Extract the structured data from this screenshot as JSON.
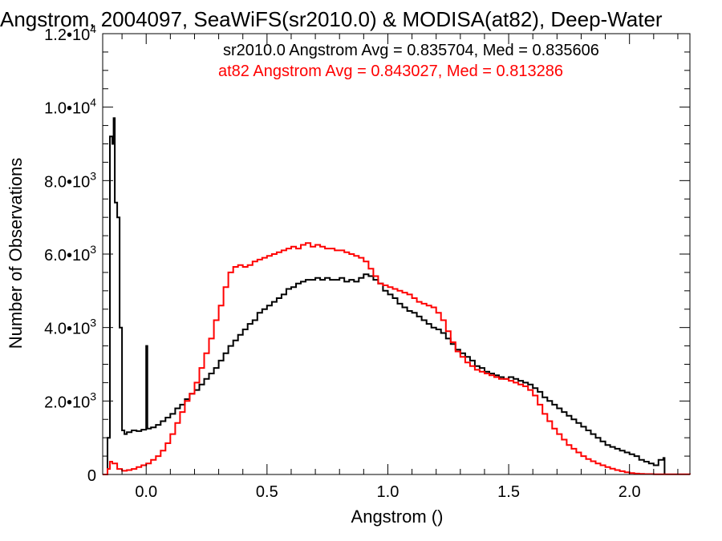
{
  "chart_data": {
    "type": "line",
    "title": "Angstrom, 2004097, SeaWiFS(sr2010.0) & MODISA(at82), Deep-Water",
    "xlabel": "Angstrom ()",
    "ylabel": "Number of Observations",
    "xlim": [
      -0.18,
      2.25
    ],
    "ylim": [
      0,
      12000
    ],
    "x_ticks": [
      {
        "value": 0.0,
        "label": "0.0"
      },
      {
        "value": 0.5,
        "label": "0.5"
      },
      {
        "value": 1.0,
        "label": "1.0"
      },
      {
        "value": 1.5,
        "label": "1.5"
      },
      {
        "value": 2.0,
        "label": "2.0"
      }
    ],
    "x_minor_step": 0.1,
    "y_ticks": [
      {
        "value": 0,
        "label": "0",
        "exp": ""
      },
      {
        "value": 2000,
        "label": "2.0•10",
        "exp": "3"
      },
      {
        "value": 4000,
        "label": "4.0•10",
        "exp": "3"
      },
      {
        "value": 6000,
        "label": "6.0•10",
        "exp": "3"
      },
      {
        "value": 8000,
        "label": "8.0•10",
        "exp": "3"
      },
      {
        "value": 10000,
        "label": "1.0•10",
        "exp": "4"
      },
      {
        "value": 12000,
        "label": "1.2•10",
        "exp": "4"
      }
    ],
    "y_minor_step": 500,
    "grid": false,
    "legend_position": "top-right",
    "annotations": [
      {
        "text": "sr2010.0 Angstrom Avg = 0.835704, Med = 0.835606",
        "color": "#000000"
      },
      {
        "text": "at82 Angstrom Avg = 0.843027, Med = 0.813286",
        "color": "#ff0000"
      }
    ],
    "series": [
      {
        "color": "#000000",
        "step": "histogram",
        "points": [
          [
            -0.18,
            0
          ],
          [
            -0.16,
            1000
          ],
          [
            -0.15,
            9200
          ],
          [
            -0.14,
            9000
          ],
          [
            -0.135,
            9700
          ],
          [
            -0.13,
            7400
          ],
          [
            -0.12,
            7000
          ],
          [
            -0.11,
            4000
          ],
          [
            -0.1,
            1200
          ],
          [
            -0.09,
            1100
          ],
          [
            -0.08,
            1150
          ],
          [
            -0.06,
            1200
          ],
          [
            -0.04,
            1180
          ],
          [
            -0.02,
            1220
          ],
          [
            0.0,
            3500
          ],
          [
            0.005,
            1250
          ],
          [
            0.02,
            1280
          ],
          [
            0.04,
            1350
          ],
          [
            0.06,
            1450
          ],
          [
            0.08,
            1550
          ],
          [
            0.1,
            1650
          ],
          [
            0.12,
            1800
          ],
          [
            0.14,
            1900
          ],
          [
            0.16,
            2050
          ],
          [
            0.18,
            2200
          ],
          [
            0.2,
            2300
          ],
          [
            0.22,
            2450
          ],
          [
            0.24,
            2600
          ],
          [
            0.26,
            2750
          ],
          [
            0.28,
            2900
          ],
          [
            0.3,
            3100
          ],
          [
            0.32,
            3300
          ],
          [
            0.34,
            3500
          ],
          [
            0.36,
            3650
          ],
          [
            0.38,
            3800
          ],
          [
            0.4,
            3950
          ],
          [
            0.42,
            4100
          ],
          [
            0.44,
            4200
          ],
          [
            0.46,
            4400
          ],
          [
            0.48,
            4500
          ],
          [
            0.5,
            4600
          ],
          [
            0.52,
            4700
          ],
          [
            0.54,
            4800
          ],
          [
            0.56,
            4900
          ],
          [
            0.58,
            5050
          ],
          [
            0.6,
            5100
          ],
          [
            0.62,
            5200
          ],
          [
            0.64,
            5250
          ],
          [
            0.66,
            5300
          ],
          [
            0.68,
            5300
          ],
          [
            0.7,
            5350
          ],
          [
            0.72,
            5300
          ],
          [
            0.74,
            5350
          ],
          [
            0.76,
            5300
          ],
          [
            0.78,
            5300
          ],
          [
            0.8,
            5350
          ],
          [
            0.82,
            5250
          ],
          [
            0.84,
            5300
          ],
          [
            0.86,
            5250
          ],
          [
            0.88,
            5350
          ],
          [
            0.9,
            5450
          ],
          [
            0.92,
            5400
          ],
          [
            0.94,
            5300
          ],
          [
            0.96,
            5200
          ],
          [
            0.98,
            5000
          ],
          [
            1.0,
            4900
          ],
          [
            1.02,
            4800
          ],
          [
            1.04,
            4650
          ],
          [
            1.06,
            4550
          ],
          [
            1.08,
            4450
          ],
          [
            1.1,
            4400
          ],
          [
            1.12,
            4300
          ],
          [
            1.14,
            4200
          ],
          [
            1.16,
            4100
          ],
          [
            1.18,
            4000
          ],
          [
            1.2,
            3950
          ],
          [
            1.22,
            3850
          ],
          [
            1.24,
            3700
          ],
          [
            1.26,
            3550
          ],
          [
            1.28,
            3400
          ],
          [
            1.3,
            3300
          ],
          [
            1.32,
            3200
          ],
          [
            1.34,
            3100
          ],
          [
            1.36,
            2950
          ],
          [
            1.38,
            2900
          ],
          [
            1.4,
            2800
          ],
          [
            1.42,
            2750
          ],
          [
            1.44,
            2700
          ],
          [
            1.46,
            2650
          ],
          [
            1.48,
            2600
          ],
          [
            1.5,
            2650
          ],
          [
            1.52,
            2600
          ],
          [
            1.54,
            2550
          ],
          [
            1.56,
            2500
          ],
          [
            1.58,
            2450
          ],
          [
            1.6,
            2350
          ],
          [
            1.62,
            2250
          ],
          [
            1.64,
            2100
          ],
          [
            1.66,
            2000
          ],
          [
            1.68,
            1900
          ],
          [
            1.7,
            1800
          ],
          [
            1.72,
            1700
          ],
          [
            1.74,
            1600
          ],
          [
            1.76,
            1500
          ],
          [
            1.78,
            1400
          ],
          [
            1.8,
            1300
          ],
          [
            1.82,
            1200
          ],
          [
            1.84,
            1100
          ],
          [
            1.86,
            1000
          ],
          [
            1.88,
            900
          ],
          [
            1.9,
            800
          ],
          [
            1.92,
            750
          ],
          [
            1.94,
            700
          ],
          [
            1.96,
            650
          ],
          [
            1.98,
            600
          ],
          [
            2.0,
            550
          ],
          [
            2.02,
            500
          ],
          [
            2.04,
            400
          ],
          [
            2.06,
            350
          ],
          [
            2.08,
            300
          ],
          [
            2.1,
            250
          ],
          [
            2.12,
            400
          ],
          [
            2.14,
            450
          ],
          [
            2.145,
            0
          ]
        ]
      },
      {
        "color": "#ff0000",
        "step": "histogram",
        "points": [
          [
            -0.18,
            0
          ],
          [
            -0.16,
            150
          ],
          [
            -0.15,
            350
          ],
          [
            -0.14,
            300
          ],
          [
            -0.12,
            150
          ],
          [
            -0.1,
            100
          ],
          [
            -0.08,
            120
          ],
          [
            -0.06,
            150
          ],
          [
            -0.04,
            200
          ],
          [
            -0.02,
            250
          ],
          [
            0.0,
            300
          ],
          [
            0.02,
            400
          ],
          [
            0.04,
            500
          ],
          [
            0.06,
            650
          ],
          [
            0.08,
            850
          ],
          [
            0.1,
            1100
          ],
          [
            0.12,
            1400
          ],
          [
            0.14,
            1700
          ],
          [
            0.16,
            2000
          ],
          [
            0.18,
            2200
          ],
          [
            0.2,
            2500
          ],
          [
            0.22,
            2900
          ],
          [
            0.24,
            3300
          ],
          [
            0.26,
            3700
          ],
          [
            0.28,
            4200
          ],
          [
            0.3,
            4600
          ],
          [
            0.32,
            5100
          ],
          [
            0.34,
            5500
          ],
          [
            0.36,
            5650
          ],
          [
            0.38,
            5700
          ],
          [
            0.4,
            5650
          ],
          [
            0.42,
            5700
          ],
          [
            0.44,
            5800
          ],
          [
            0.46,
            5850
          ],
          [
            0.48,
            5900
          ],
          [
            0.5,
            5950
          ],
          [
            0.52,
            6000
          ],
          [
            0.54,
            6050
          ],
          [
            0.56,
            6100
          ],
          [
            0.58,
            6150
          ],
          [
            0.6,
            6200
          ],
          [
            0.62,
            6150
          ],
          [
            0.64,
            6250
          ],
          [
            0.66,
            6300
          ],
          [
            0.68,
            6200
          ],
          [
            0.7,
            6250
          ],
          [
            0.72,
            6200
          ],
          [
            0.74,
            6150
          ],
          [
            0.76,
            6150
          ],
          [
            0.78,
            6100
          ],
          [
            0.8,
            6100
          ],
          [
            0.82,
            6050
          ],
          [
            0.84,
            6000
          ],
          [
            0.86,
            5950
          ],
          [
            0.88,
            5900
          ],
          [
            0.9,
            5800
          ],
          [
            0.92,
            5600
          ],
          [
            0.94,
            5400
          ],
          [
            0.96,
            5200
          ],
          [
            0.98,
            5150
          ],
          [
            1.0,
            5100
          ],
          [
            1.02,
            5050
          ],
          [
            1.04,
            5000
          ],
          [
            1.06,
            4950
          ],
          [
            1.08,
            4900
          ],
          [
            1.1,
            4800
          ],
          [
            1.12,
            4700
          ],
          [
            1.14,
            4650
          ],
          [
            1.16,
            4600
          ],
          [
            1.18,
            4550
          ],
          [
            1.2,
            4400
          ],
          [
            1.22,
            4200
          ],
          [
            1.24,
            3900
          ],
          [
            1.26,
            3600
          ],
          [
            1.28,
            3350
          ],
          [
            1.3,
            3200
          ],
          [
            1.32,
            3050
          ],
          [
            1.34,
            2950
          ],
          [
            1.36,
            2850
          ],
          [
            1.38,
            2800
          ],
          [
            1.4,
            2750
          ],
          [
            1.42,
            2700
          ],
          [
            1.44,
            2650
          ],
          [
            1.46,
            2600
          ],
          [
            1.48,
            2600
          ],
          [
            1.5,
            2550
          ],
          [
            1.52,
            2500
          ],
          [
            1.54,
            2450
          ],
          [
            1.56,
            2400
          ],
          [
            1.58,
            2300
          ],
          [
            1.6,
            2150
          ],
          [
            1.62,
            1900
          ],
          [
            1.64,
            1650
          ],
          [
            1.66,
            1450
          ],
          [
            1.68,
            1250
          ],
          [
            1.7,
            1100
          ],
          [
            1.72,
            950
          ],
          [
            1.74,
            800
          ],
          [
            1.76,
            700
          ],
          [
            1.78,
            600
          ],
          [
            1.8,
            500
          ],
          [
            1.82,
            420
          ],
          [
            1.84,
            360
          ],
          [
            1.86,
            300
          ],
          [
            1.88,
            250
          ],
          [
            1.9,
            200
          ],
          [
            1.92,
            160
          ],
          [
            1.94,
            120
          ],
          [
            1.96,
            90
          ],
          [
            1.98,
            60
          ],
          [
            2.0,
            40
          ],
          [
            2.02,
            25
          ],
          [
            2.04,
            15
          ],
          [
            2.06,
            10
          ],
          [
            2.1,
            5
          ],
          [
            2.25,
            0
          ]
        ]
      }
    ]
  }
}
